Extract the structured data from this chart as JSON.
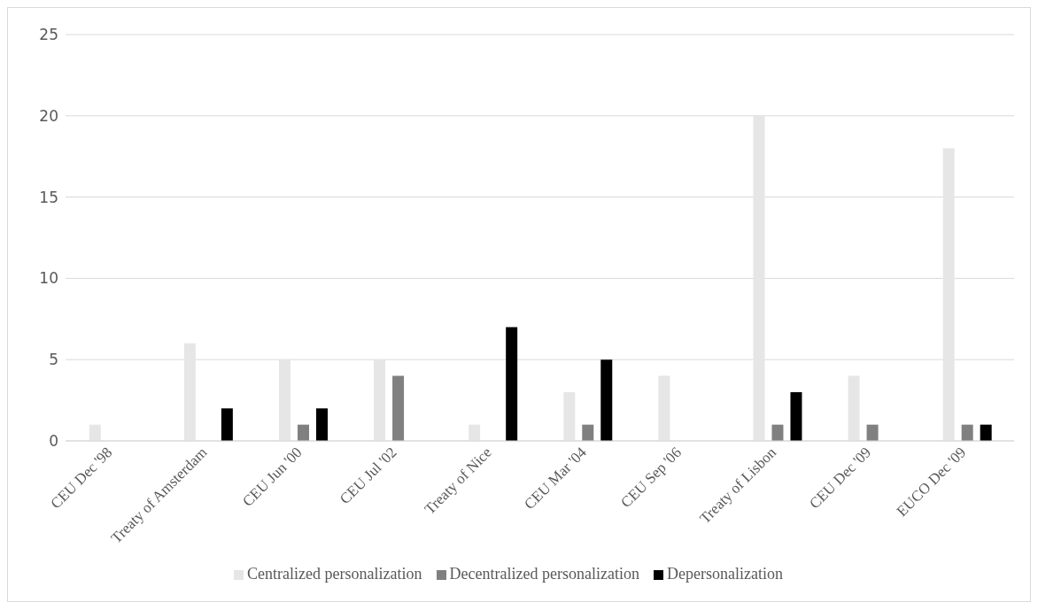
{
  "chart_data": {
    "type": "bar",
    "categories": [
      "CEU Dec '98",
      "Treaty of Amsterdam",
      "CEU Jun '00",
      "CEU Jul '02",
      "Treaty of Nice",
      "CEU Mar '04",
      "CEU Sep '06",
      "Treaty of Lisbon",
      "CEU Dec '09",
      "EUCO Dec '09"
    ],
    "series": [
      {
        "name": "Centralized personalization",
        "color": "#e6e6e6",
        "values": [
          1,
          6,
          5,
          5,
          1,
          3,
          4,
          20,
          4,
          18
        ]
      },
      {
        "name": "Decentralized personalization",
        "color": "#808080",
        "values": [
          0,
          0,
          1,
          4,
          0,
          1,
          0,
          1,
          1,
          1
        ]
      },
      {
        "name": "Depersonalization",
        "color": "#000000",
        "values": [
          0,
          2,
          2,
          0,
          7,
          5,
          0,
          3,
          0,
          1
        ]
      }
    ],
    "ylim": [
      0,
      25
    ],
    "yticks": [
      0,
      5,
      10,
      15,
      20,
      25
    ],
    "grid": "y",
    "legend": "bottom"
  }
}
